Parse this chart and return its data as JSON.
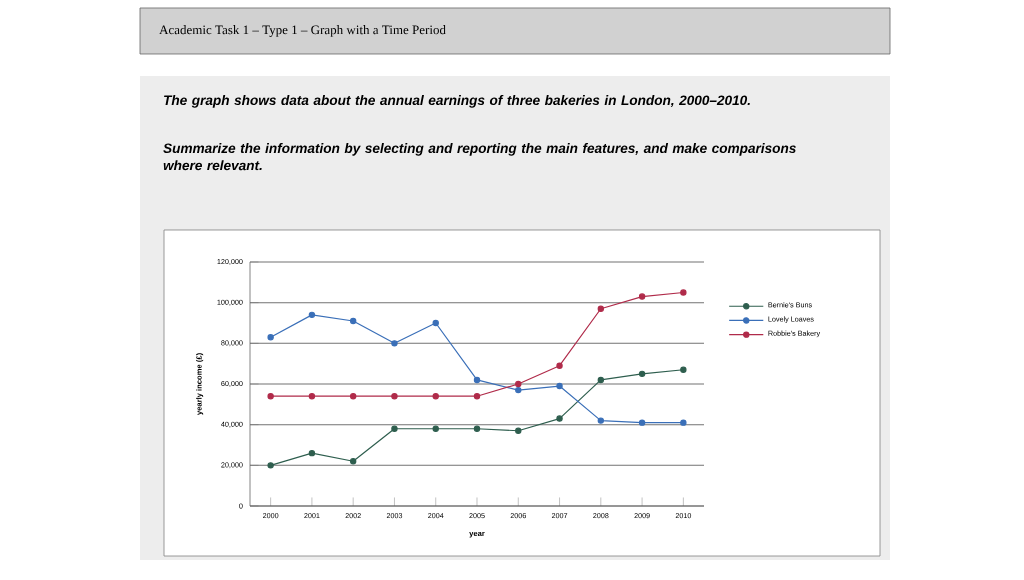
{
  "chart_data": {
    "type": "line",
    "title": "The graph shows data about the annual earnings of three bakeries in London, 2000–2010.",
    "subtitle": "Summarize the information by selecting and reporting the main features, and make comparisons where relevant.",
    "annotations": [
      "Academic Task 1 – Type 1 – Graph with a Time Period"
    ],
    "xlabel": "year",
    "ylabel": "yearly income (£)",
    "x": [
      2000,
      2001,
      2002,
      2003,
      2004,
      2005,
      2006,
      2007,
      2008,
      2009,
      2010
    ],
    "series": [
      {
        "name": "Bernie's Buns",
        "color": "#2e5e4e",
        "values": [
          20000,
          26000,
          22000,
          38000,
          38000,
          38000,
          37000,
          43000,
          62000,
          65000,
          67000
        ]
      },
      {
        "name": "Lovely Loaves",
        "color": "#3a6fb8",
        "values": [
          83000,
          94000,
          91000,
          80000,
          90000,
          62000,
          57000,
          59000,
          42000,
          41000,
          41000
        ]
      },
      {
        "name": "Robbie's Bakery",
        "color": "#b02b4a",
        "values": [
          54000,
          54000,
          54000,
          54000,
          54000,
          54000,
          60000,
          69000,
          97000,
          103000,
          105000
        ]
      }
    ],
    "xlim": [
      1999.5,
      2010.5
    ],
    "xticks": [
      2000,
      2001,
      2002,
      2003,
      2004,
      2005,
      2006,
      2007,
      2008,
      2009,
      2010
    ],
    "ylim": [
      0,
      120000
    ],
    "yticks": [
      0,
      {
        "value": 20000,
        "label": "20,000"
      },
      {
        "value": 40000,
        "label": "40,000"
      },
      {
        "value": 60000,
        "label": "60,000"
      },
      {
        "value": 80000,
        "label": "80,000"
      },
      {
        "value": 100000,
        "label": "100,000"
      },
      {
        "value": 120000,
        "label": "120,000"
      }
    ],
    "grid": "y",
    "legend": "right",
    "marker": "circle",
    "line_style": "solid"
  }
}
